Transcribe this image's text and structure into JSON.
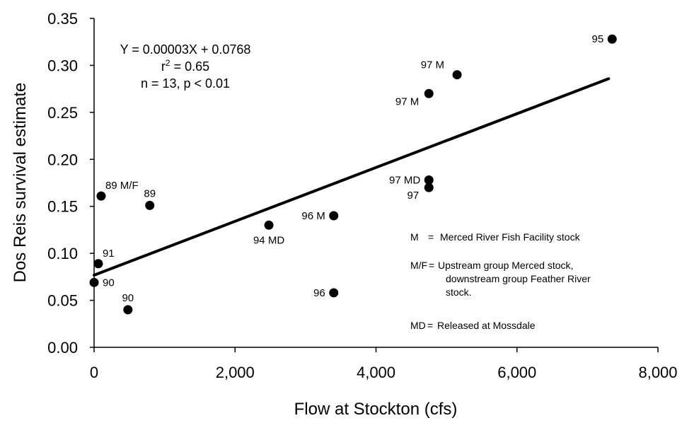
{
  "chart_data": {
    "type": "scatter",
    "xlabel": "Flow at Stockton (cfs)",
    "ylabel": "Dos Reis survival estimate",
    "xlim": [
      0,
      8000
    ],
    "ylim": [
      0,
      0.35
    ],
    "x_ticks": [
      {
        "value": 0,
        "label": "0"
      },
      {
        "value": 2000,
        "label": "2,000"
      },
      {
        "value": 4000,
        "label": "4,000"
      },
      {
        "value": 6000,
        "label": "6,000"
      },
      {
        "value": 8000,
        "label": "8,000"
      }
    ],
    "y_ticks": [
      {
        "value": 0.0,
        "label": "0.00"
      },
      {
        "value": 0.05,
        "label": "0.05"
      },
      {
        "value": 0.1,
        "label": "0.10"
      },
      {
        "value": 0.15,
        "label": "0.15"
      },
      {
        "value": 0.2,
        "label": "0.20"
      },
      {
        "value": 0.25,
        "label": "0.25"
      },
      {
        "value": 0.3,
        "label": "0.30"
      },
      {
        "value": 0.35,
        "label": "0.35"
      }
    ],
    "grid": false,
    "points": [
      {
        "x": 7350,
        "y": 0.328,
        "label": "95",
        "label_pos": "left"
      },
      {
        "x": 5150,
        "y": 0.29,
        "label": "97 M",
        "label_pos": "above-left"
      },
      {
        "x": 4750,
        "y": 0.27,
        "label": "97 M",
        "label_pos": "below-left"
      },
      {
        "x": 4750,
        "y": 0.178,
        "label": "97 MD",
        "label_pos": "left"
      },
      {
        "x": 4750,
        "y": 0.17,
        "label": "97",
        "label_pos": "below-left"
      },
      {
        "x": 3400,
        "y": 0.14,
        "label": "96 M",
        "label_pos": "left"
      },
      {
        "x": 3400,
        "y": 0.058,
        "label": "96",
        "label_pos": "left"
      },
      {
        "x": 2480,
        "y": 0.13,
        "label": "94 MD",
        "label_pos": "below"
      },
      {
        "x": 790,
        "y": 0.151,
        "label": "89",
        "label_pos": "above"
      },
      {
        "x": 100,
        "y": 0.161,
        "label": "89 M/F",
        "label_pos": "above-right"
      },
      {
        "x": 60,
        "y": 0.089,
        "label": "91",
        "label_pos": "above-right"
      },
      {
        "x": 0,
        "y": 0.069,
        "label": "90",
        "label_pos": "right"
      },
      {
        "x": 480,
        "y": 0.04,
        "label": "90",
        "label_pos": "above"
      }
    ],
    "regression_line": {
      "points": [
        {
          "x": 0,
          "y": 0.0768
        },
        {
          "x": 7300,
          "y": 0.2858
        }
      ]
    },
    "annotation": {
      "equation": "Y = 0.00003X + 0.0768",
      "r2_prefix": "r",
      "r2_exp": "2",
      "r2_value": " = 0.65",
      "n_line": "n = 13, p < 0.01"
    },
    "legend": {
      "placement": "lower-right",
      "entries": [
        {
          "key": "M",
          "sep": "=",
          "lines": [
            "Merced River Fish Facility stock"
          ]
        },
        {
          "key": "M/F",
          "sep": "=",
          "lines": [
            "Upstream group Merced stock,",
            "downstream group Feather River",
            "stock."
          ]
        },
        {
          "key": "MD",
          "sep": "=",
          "lines": [
            "Released at Mossdale"
          ]
        }
      ]
    }
  }
}
